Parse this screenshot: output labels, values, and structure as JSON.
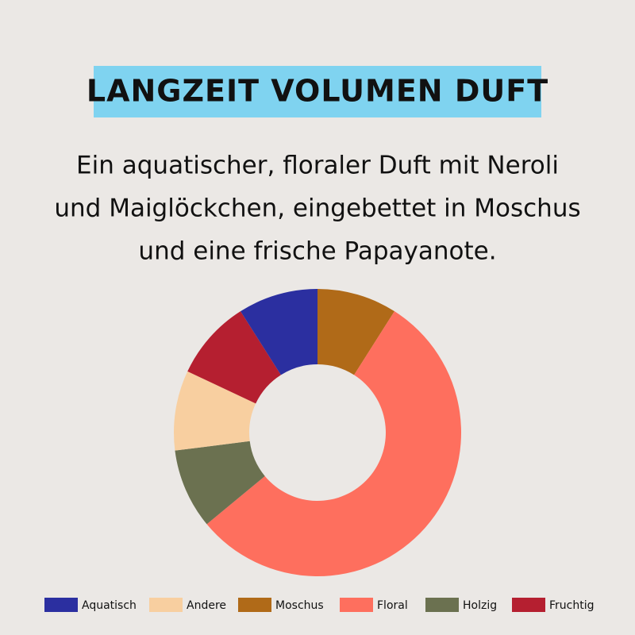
{
  "chart_data": {
    "type": "donut",
    "title": "LANGZEIT VOLUMEN DUFT",
    "subtitle": [
      "Ein aquatischer, floraler Duft mit Neroli",
      "und Maiglöckchen, eingebettet in Moschus",
      "und eine frische Papayanote."
    ],
    "series": [
      {
        "name": "Moschus",
        "color": "#b06a18",
        "values": [
          9
        ]
      },
      {
        "name": "Floral",
        "color": "#fe6f5e",
        "values": [
          55
        ]
      },
      {
        "name": "Holzig",
        "color": "#6b7150",
        "values": [
          9
        ]
      },
      {
        "name": "Andere",
        "color": "#f8cfa0",
        "values": [
          9
        ]
      },
      {
        "name": "Fruchtig",
        "color": "#b51f30",
        "values": [
          9
        ]
      },
      {
        "name": "Aquatisch",
        "color": "#2b2fa0",
        "values": [
          9
        ]
      }
    ]
  }
}
